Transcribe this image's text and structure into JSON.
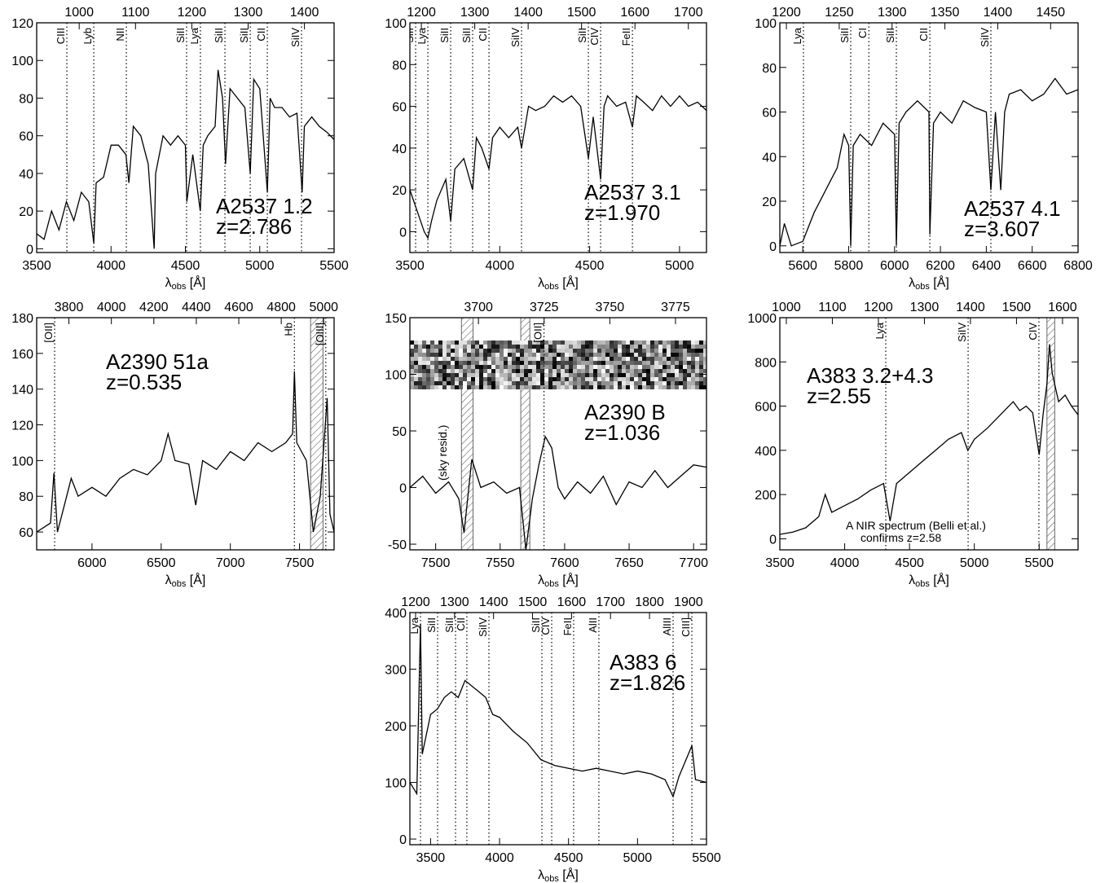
{
  "chart_data": [
    {
      "type": "line",
      "color": "#000000",
      "annotations": [
        "A2537 1.2",
        "z=2.786"
      ],
      "xlabel": [
        "λ",
        "obs",
        " [Å]"
      ],
      "xlim": [
        3500,
        5500
      ],
      "ylim": [
        -2,
        120
      ],
      "xticks": [
        3500,
        4000,
        4500,
        5000,
        5500
      ],
      "yticks": [
        0,
        20,
        40,
        60,
        80,
        100,
        120
      ],
      "x2lim": [
        924.5,
        1452.7
      ],
      "x2ticks": [
        1000,
        1100,
        1200,
        1300,
        1400
      ],
      "lines": [
        {
          "label": "CIII",
          "x": 3703
        },
        {
          "label": "Lyb",
          "x": 3884
        },
        {
          "label": "NII",
          "x": 4103
        },
        {
          "label": "SiII",
          "x": 4508
        },
        {
          "label": "Lya",
          "x": 4601
        },
        {
          "label": "SiII",
          "x": 4766
        },
        {
          "label": "SiII",
          "x": 4936
        },
        {
          "label": "CII",
          "x": 5051
        },
        {
          "label": "SiIV",
          "x": 5281
        }
      ],
      "masked": [],
      "x": [
        3500,
        3550,
        3600,
        3650,
        3700,
        3750,
        3800,
        3850,
        3884,
        3900,
        3950,
        4000,
        4050,
        4100,
        4120,
        4150,
        4200,
        4250,
        4290,
        4300,
        4350,
        4400,
        4450,
        4500,
        4510,
        4550,
        4600,
        4620,
        4650,
        4700,
        4720,
        4750,
        4770,
        4800,
        4850,
        4900,
        4936,
        4960,
        5000,
        5051,
        5070,
        5100,
        5150,
        5200,
        5250,
        5285,
        5300,
        5350,
        5400,
        5450,
        5500
      ],
      "values": [
        8,
        5,
        20,
        10,
        25,
        15,
        30,
        25,
        3,
        35,
        38,
        55,
        55,
        50,
        35,
        65,
        60,
        45,
        0,
        40,
        60,
        55,
        60,
        55,
        25,
        50,
        20,
        55,
        60,
        65,
        95,
        80,
        45,
        85,
        80,
        75,
        40,
        90,
        85,
        30,
        80,
        75,
        75,
        70,
        72,
        30,
        65,
        70,
        65,
        62,
        58
      ]
    },
    {
      "type": "line",
      "color": "#000000",
      "annotations": [
        "A2537 3.1",
        "z=1.970"
      ],
      "xlabel": [
        "λ",
        "obs",
        " [Å]"
      ],
      "xlim": [
        3500,
        5150
      ],
      "ylim": [
        -10,
        100
      ],
      "xticks": [
        3500,
        4000,
        4500,
        5000
      ],
      "yticks": [
        0,
        20,
        40,
        60,
        80,
        100
      ],
      "x2lim": [
        1178.5,
        1734.0
      ],
      "x2ticks": [
        1200,
        1300,
        1400,
        1500,
        1600,
        1700
      ],
      "lines": [
        {
          "label": "SiII",
          "x": 3532
        },
        {
          "label": "Lya",
          "x": 3600
        },
        {
          "label": "SiII",
          "x": 3727
        },
        {
          "label": "SiII",
          "x": 3849
        },
        {
          "label": "CII",
          "x": 3940
        },
        {
          "label": "SiIV",
          "x": 4121
        },
        {
          "label": "SiII",
          "x": 4493
        },
        {
          "label": "CIV",
          "x": 4561
        },
        {
          "label": "FeII",
          "x": 4738
        }
      ],
      "masked": [],
      "x": [
        3500,
        3540,
        3580,
        3600,
        3620,
        3650,
        3700,
        3727,
        3750,
        3800,
        3849,
        3870,
        3900,
        3940,
        3960,
        4000,
        4050,
        4100,
        4121,
        4160,
        4200,
        4250,
        4300,
        4350,
        4400,
        4450,
        4493,
        4520,
        4561,
        4580,
        4600,
        4650,
        4700,
        4738,
        4760,
        4800,
        4850,
        4900,
        4950,
        5000,
        5050,
        5100,
        5150
      ],
      "values": [
        20,
        10,
        0,
        -3,
        5,
        15,
        25,
        5,
        30,
        35,
        20,
        45,
        40,
        30,
        45,
        50,
        45,
        50,
        40,
        60,
        58,
        60,
        65,
        62,
        65,
        60,
        35,
        55,
        25,
        60,
        65,
        60,
        62,
        50,
        65,
        62,
        58,
        65,
        60,
        65,
        60,
        62,
        58
      ]
    },
    {
      "type": "line",
      "color": "#000000",
      "annotations": [
        "A2537 4.1",
        "z=3.607"
      ],
      "xlabel": [
        "λ",
        "obs",
        " [Å]"
      ],
      "xlim": [
        5500,
        6800
      ],
      "ylim": [
        -3,
        100
      ],
      "xticks": [
        5600,
        5800,
        6000,
        6200,
        6400,
        6600,
        6800
      ],
      "yticks": [
        0,
        20,
        40,
        60,
        80,
        100
      ],
      "x2lim": [
        1193.8,
        1476.0
      ],
      "x2ticks": [
        1200,
        1250,
        1300,
        1350,
        1400,
        1450
      ],
      "lines": [
        {
          "label": "Lya",
          "x": 5603
        },
        {
          "label": "SiII",
          "x": 5809
        },
        {
          "label": "CI",
          "x": 5888
        },
        {
          "label": "SiII",
          "x": 6008
        },
        {
          "label": "CII",
          "x": 6154
        },
        {
          "label": "SiIV",
          "x": 6420
        }
      ],
      "masked": [],
      "x": [
        5500,
        5520,
        5550,
        5600,
        5650,
        5700,
        5750,
        5780,
        5800,
        5809,
        5820,
        5850,
        5900,
        5950,
        6000,
        6008,
        6020,
        6050,
        6100,
        6150,
        6154,
        6170,
        6200,
        6250,
        6300,
        6350,
        6400,
        6420,
        6440,
        6463,
        6480,
        6500,
        6550,
        6600,
        6650,
        6700,
        6750,
        6800
      ],
      "values": [
        0,
        10,
        0,
        2,
        15,
        25,
        35,
        50,
        45,
        0,
        45,
        50,
        45,
        55,
        50,
        0,
        55,
        60,
        65,
        60,
        5,
        55,
        60,
        55,
        65,
        62,
        60,
        25,
        60,
        25,
        60,
        68,
        70,
        65,
        68,
        75,
        68,
        70
      ]
    },
    {
      "type": "line",
      "color": "#000000",
      "annotations": [
        "A2390 51a",
        "z=0.535"
      ],
      "xlabel": [
        "λ",
        "obs",
        " [Å]"
      ],
      "xlim": [
        5600,
        7750
      ],
      "ylim": [
        50,
        180
      ],
      "xticks": [
        6000,
        6500,
        7000,
        7500
      ],
      "yticks": [
        60,
        80,
        100,
        120,
        140,
        160,
        180
      ],
      "x2lim": [
        3648.2,
        5048.9
      ],
      "x2ticks": [
        3800,
        4000,
        4200,
        4400,
        4600,
        4800,
        5000
      ],
      "lines": [
        {
          "label": "[OII]",
          "x": 5730
        },
        {
          "label": "Hb",
          "x": 7463
        },
        {
          "label": "[OIII]",
          "x": 7690
        }
      ],
      "masked": [
        [
          7580,
          7670
        ]
      ],
      "x": [
        5600,
        5700,
        5725,
        5750,
        5800,
        5850,
        5900,
        6000,
        6100,
        6200,
        6300,
        6400,
        6500,
        6550,
        6600,
        6700,
        6750,
        6800,
        6900,
        7000,
        7100,
        7200,
        7300,
        7400,
        7450,
        7463,
        7480,
        7550,
        7600,
        7650,
        7700,
        7720,
        7750
      ],
      "values": [
        60,
        65,
        93,
        60,
        75,
        90,
        80,
        85,
        80,
        90,
        95,
        92,
        100,
        115,
        100,
        98,
        75,
        100,
        95,
        105,
        100,
        110,
        105,
        110,
        115,
        150,
        110,
        100,
        60,
        80,
        135,
        70,
        60
      ]
    },
    {
      "type": "line",
      "color": "#000000",
      "annotations": [
        "A2390 B",
        "z=1.036"
      ],
      "xlabel": [
        "λ",
        "obs",
        " [Å]"
      ],
      "notes": [
        "(sky resid.)"
      ],
      "xlim": [
        7480,
        7710
      ],
      "ylim": [
        -55,
        150
      ],
      "xticks": [
        7500,
        7550,
        7600,
        7650,
        7700
      ],
      "yticks": [
        -50,
        0,
        50,
        100,
        150
      ],
      "x2lim": [
        3673.9,
        3786.8
      ],
      "x2ticks": [
        3700,
        3725,
        3750,
        3775
      ],
      "lines": [
        {
          "label": "[OII]",
          "x": 7584
        }
      ],
      "masked": [
        [
          7520,
          7529
        ],
        [
          7566,
          7573
        ]
      ],
      "x": [
        7480,
        7490,
        7500,
        7510,
        7518,
        7522,
        7528,
        7535,
        7545,
        7555,
        7565,
        7570,
        7575,
        7580,
        7585,
        7590,
        7595,
        7600,
        7610,
        7620,
        7630,
        7640,
        7650,
        7660,
        7670,
        7680,
        7690,
        7700,
        7710
      ],
      "values": [
        0,
        10,
        -5,
        5,
        -10,
        -40,
        25,
        0,
        5,
        -5,
        0,
        -55,
        -10,
        20,
        45,
        35,
        0,
        -10,
        5,
        -5,
        10,
        -15,
        5,
        0,
        15,
        0,
        10,
        20,
        18
      ]
    },
    {
      "type": "line",
      "color": "#000000",
      "annotations": [
        "A383 3.2+4.3",
        "z=2.55"
      ],
      "xlabel": [
        "λ",
        "obs",
        " [Å]"
      ],
      "notes": [
        "A NIR spectrum (Belli et al.)",
        "confirms z=2.58"
      ],
      "xlim": [
        3500,
        5800
      ],
      "ylim": [
        -50,
        1000
      ],
      "xticks": [
        3500,
        4000,
        4500,
        5000,
        5500
      ],
      "yticks": [
        0,
        200,
        400,
        600,
        800,
        1000
      ],
      "x2lim": [
        985.9,
        1633.8
      ],
      "x2ticks": [
        1000,
        1100,
        1200,
        1300,
        1400,
        1500,
        1600
      ],
      "lines": [
        {
          "label": "Lya",
          "x": 4317
        },
        {
          "label": "SiIV",
          "x": 4952
        },
        {
          "label": "CIV",
          "x": 5498
        }
      ],
      "masked": [
        [
          5560,
          5620
        ]
      ],
      "x": [
        3500,
        3600,
        3700,
        3800,
        3850,
        3900,
        4000,
        4100,
        4200,
        4300,
        4350,
        4400,
        4500,
        4600,
        4700,
        4800,
        4900,
        4950,
        5000,
        5100,
        5200,
        5300,
        5350,
        5400,
        5450,
        5500,
        5530,
        5560,
        5580,
        5600,
        5650,
        5700,
        5750,
        5800
      ],
      "values": [
        20,
        30,
        50,
        100,
        200,
        120,
        150,
        180,
        220,
        250,
        80,
        250,
        300,
        350,
        400,
        450,
        480,
        400,
        450,
        500,
        560,
        620,
        580,
        600,
        570,
        380,
        560,
        700,
        880,
        750,
        620,
        650,
        600,
        560
      ]
    },
    {
      "type": "line",
      "color": "#000000",
      "annotations": [
        "A383 6",
        "z=1.826"
      ],
      "xlabel": [
        "λ",
        "obs",
        " [Å]"
      ],
      "xlim": [
        3350,
        5500
      ],
      "ylim": [
        -10,
        400
      ],
      "xticks": [
        3500,
        4000,
        4500,
        5000,
        5500
      ],
      "yticks": [
        0,
        100,
        200,
        300,
        400
      ],
      "x2lim": [
        1185.4,
        1946.2
      ],
      "x2ticks": [
        1200,
        1300,
        1400,
        1500,
        1600,
        1700,
        1800,
        1900
      ],
      "lines": [
        {
          "label": "Lya",
          "x": 3427
        },
        {
          "label": "SiII",
          "x": 3551
        },
        {
          "label": "SiII",
          "x": 3681
        },
        {
          "label": "CII",
          "x": 3763
        },
        {
          "label": "SiIV",
          "x": 3923
        },
        {
          "label": "SiII",
          "x": 4307
        },
        {
          "label": "CIV",
          "x": 4378
        },
        {
          "label": "FeII",
          "x": 4537
        },
        {
          "label": "AlII",
          "x": 4720
        },
        {
          "label": "AlIII",
          "x": 5258
        },
        {
          "label": "CIII]",
          "x": 5394
        }
      ],
      "masked": [],
      "x": [
        3350,
        3400,
        3427,
        3440,
        3500,
        3550,
        3600,
        3650,
        3700,
        3750,
        3800,
        3850,
        3900,
        3950,
        4000,
        4100,
        4200,
        4300,
        4400,
        4500,
        4600,
        4700,
        4800,
        4900,
        5000,
        5100,
        5200,
        5258,
        5300,
        5394,
        5420,
        5500
      ],
      "values": [
        100,
        80,
        380,
        150,
        220,
        230,
        250,
        260,
        250,
        280,
        270,
        260,
        250,
        220,
        215,
        190,
        170,
        140,
        130,
        125,
        120,
        125,
        120,
        115,
        120,
        115,
        105,
        75,
        110,
        165,
        105,
        100
      ]
    }
  ]
}
